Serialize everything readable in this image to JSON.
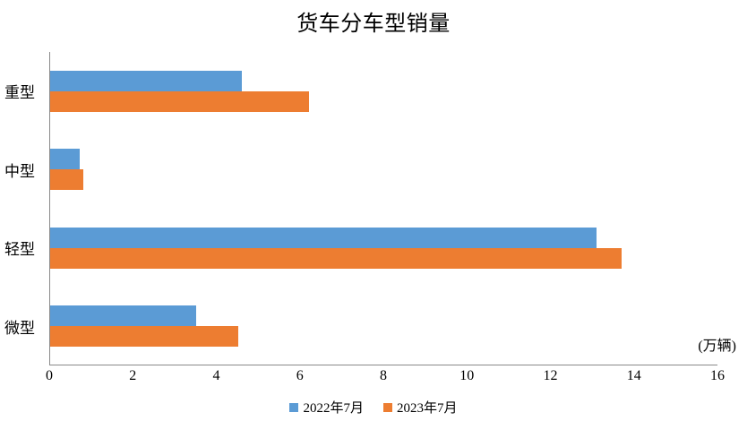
{
  "chart_data": {
    "type": "bar",
    "orientation": "horizontal",
    "title": "货车分车型销量",
    "unit_label": "(万辆)",
    "categories": [
      "重型",
      "中型",
      "轻型",
      "微型"
    ],
    "series": [
      {
        "name": "2022年7月",
        "color": "#5B9BD5",
        "values": [
          4.6,
          0.7,
          13.1,
          3.5
        ]
      },
      {
        "name": "2023年7月",
        "color": "#ED7D31",
        "values": [
          6.2,
          0.8,
          13.7,
          4.5
        ]
      }
    ],
    "xlim": [
      0,
      16
    ],
    "x_ticks": [
      "0",
      "2",
      "4",
      "6",
      "8",
      "10",
      "12",
      "14",
      "16"
    ],
    "grid": false,
    "legend_position": "bottom",
    "axis_color": "#8a8a8a",
    "background_color": "#ffffff"
  }
}
